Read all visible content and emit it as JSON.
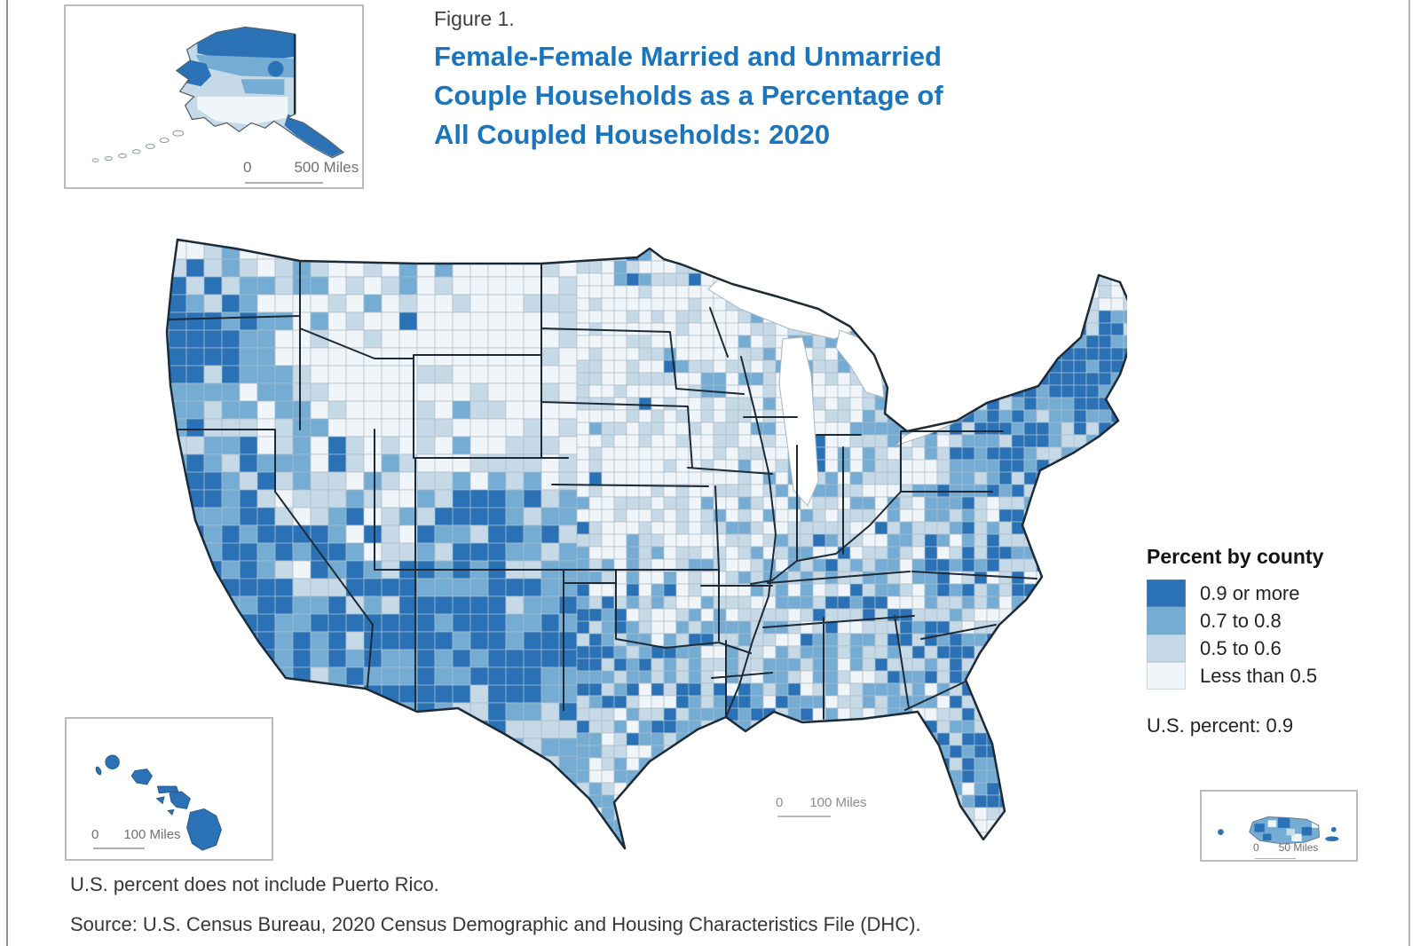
{
  "figure": {
    "label": "Figure 1.",
    "title": "Female-Female Married and Unmarried Couple Households as a Percentage of All Coupled Households: 2020",
    "title_lines": [
      "Female-Female Married and Unmarried",
      "Couple Households as a Percentage of",
      "All Coupled Households: 2020"
    ]
  },
  "legend": {
    "title": "Percent by county",
    "items": [
      {
        "label": "0.9 or more",
        "color": "#2a72b5"
      },
      {
        "label": "0.7 to 0.8",
        "color": "#74acd4"
      },
      {
        "label": "0.5 to 0.6",
        "color": "#c6d9e6"
      },
      {
        "label": "Less than 0.5",
        "color": "#f0f5f9"
      }
    ],
    "us_percent_label": "U.S. percent: 0.9"
  },
  "map": {
    "type": "choropleth",
    "geography": "U.S. counties",
    "year": "2020",
    "us_percent": 0.9,
    "class_colors": [
      "#2a72b5",
      "#74acd4",
      "#c6d9e6",
      "#f0f5f9"
    ],
    "state_border_color": "#1d2b38",
    "county_border_color": "#aebdc6",
    "water_color": "#ffffff"
  },
  "scalebars": {
    "alaska": {
      "zero": "0",
      "label": "500 Miles"
    },
    "hawaii": {
      "zero": "0",
      "label": "100 Miles"
    },
    "mainland": {
      "zero": "0",
      "label": "100 Miles"
    },
    "puerto_rico": {
      "zero": "0",
      "label": "50 Miles"
    }
  },
  "notes": {
    "exclusion": "U.S. percent does not include Puerto Rico.",
    "source": "Source: U.S. Census Bureau, 2020 Census Demographic and Housing Characteristics File (DHC)."
  },
  "colors": {
    "title_blue": "#1b75bc",
    "figure_label_text": "#3e3e3e",
    "body_text": "#373737",
    "page_rule": "#8394aa"
  }
}
